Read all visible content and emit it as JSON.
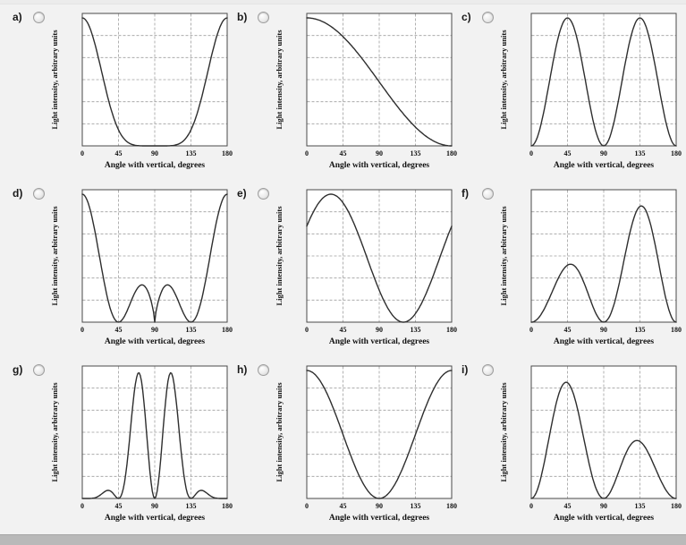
{
  "page": {
    "background": "#f2f2f2",
    "bottom_bar_color": "#b9b9b9",
    "selected_answer": null
  },
  "axes": {
    "xlabel": "Angle with vertical, degrees",
    "ylabel": "Light intensity, arbitrary units",
    "x_ticks": [
      "0",
      "45",
      "90",
      "135",
      "180"
    ],
    "xlim": [
      0,
      180
    ],
    "ylim": [
      0,
      1
    ],
    "v_gridlines_deg": [
      45,
      90,
      135
    ],
    "h_gridlines": 5,
    "grid": true,
    "grid_style": "dashed",
    "curve_color": "#2e2e2e",
    "grid_color": "#9e9e9e",
    "frame_color": "#4a4a4a",
    "plot_bg": "#ffffff"
  },
  "chart_data": [
    {
      "id": "a",
      "label": "a)",
      "type": "line",
      "shape_description": "Maximum at 0 and 180 degrees, falling steeply and staying flat near zero between about 60 and 120 degrees",
      "expr": "Math.pow(Math.abs(Math.cos(r)),6)"
    },
    {
      "id": "b",
      "label": "b)",
      "type": "line",
      "shape_description": "Monotonic decrease from maximum at 0 degrees to zero at 180 degrees",
      "expr": "Math.pow(Math.cos(r/2),2)"
    },
    {
      "id": "c",
      "label": "c)",
      "type": "line",
      "shape_description": "Zero at 0, 90 and 180 degrees with two equal maxima at 45 and 135 degrees",
      "expr": "Math.pow(Math.sin(2*r),2)"
    },
    {
      "id": "d",
      "label": "d)",
      "type": "line",
      "shape_description": "Large maxima at 0 and 180 degrees, zeros at 45, 90 and 135 degrees, and two small lobes near 67 and 113 degrees",
      "expr": "Math.pow(Math.abs(Math.cos(r)),0.7)*Math.pow(Math.cos(2*r),2)"
    },
    {
      "id": "e",
      "label": "e)",
      "type": "line",
      "shape_description": "Starts at about three quarters of maximum, peaks near 30 degrees, falls to zero near 120 degrees, rises again toward 180 degrees",
      "expr": "Math.pow(Math.cos(r-Math.PI/6),2)"
    },
    {
      "id": "f",
      "label": "f)",
      "type": "line",
      "shape_description": "Small lobe peaking near 45 degrees at about half height, minimum near 90 degrees, larger lobe peaking near 135 degrees, zero at 0 and 180 degrees",
      "expr": "Math.pow(Math.sin(2*r),2)*(0.35+0.65*Math.pow(Math.sin(r/2),2))"
    },
    {
      "id": "g",
      "label": "g)",
      "type": "line",
      "shape_description": "Near zero from 0 to about 50 degrees and from about 130 to 180 degrees, with two tall narrow lobes peaking near 68 and 112 degrees and a zero at 90 degrees",
      "expr": "Math.min(1,1.3*Math.pow(Math.sin(4*r),2)*Math.pow(Math.sin(r),4))"
    },
    {
      "id": "h",
      "label": "h)",
      "type": "line",
      "shape_description": "Maximum at 0 degrees, smooth fall to zero at 90 degrees, smooth rise back to maximum at 180 degrees",
      "expr": "Math.pow(Math.cos(r),2)"
    },
    {
      "id": "i",
      "label": "i)",
      "type": "line",
      "shape_description": "Tall lobe peaking just after 45 degrees, minimum near 95 degrees, smaller lobe peaking near 135 degrees at about half height, zero at 0 and 180 degrees",
      "expr": "Math.pow(Math.sin(2*r),2)*(0.35+0.65*Math.pow(Math.cos(r/2),2))"
    }
  ]
}
